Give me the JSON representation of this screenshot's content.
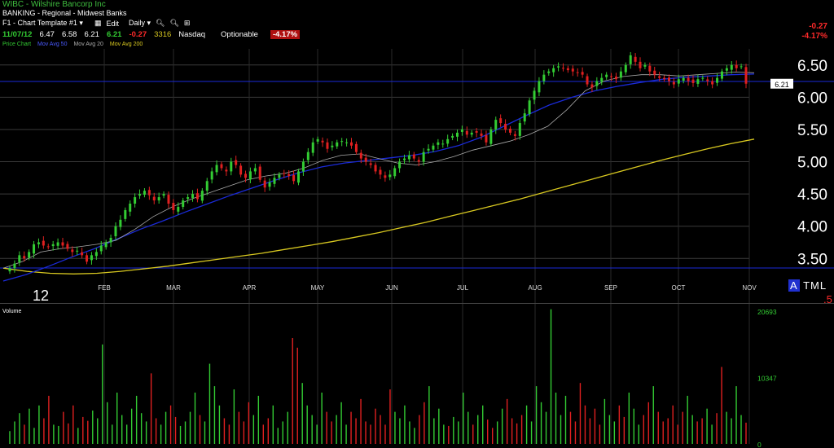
{
  "header": {
    "title": "WIBC - Wilshire Bancorp Inc",
    "industry": "BANKING - Regional - Midwest Banks",
    "toolbar": {
      "template": "F1 - Chart Template #1",
      "edit": "Edit",
      "period": "Daily"
    },
    "quote": {
      "date": "11/07/12",
      "open": "6.47",
      "high": "6.58",
      "low": "6.21",
      "close": "6.21",
      "change": "-0.27",
      "volume": "3316",
      "exchange": "Nasdaq",
      "optionable": "Optionable",
      "pct_change": "-4.17%"
    },
    "legend": {
      "price": "Price Chart",
      "ma50": "Mov Avg 50",
      "ma20": "Mov Avg 20",
      "ma200": "Mov Avg 200"
    },
    "right_change": "-0.27",
    "right_pct": "-4.17%"
  },
  "overlay": {
    "year": "12",
    "atml": "ATML",
    "atml_a": "A",
    "atml_rest": "TML",
    "five": ".5",
    "volume_label": "Volume"
  },
  "colors": {
    "up": "#33cc33",
    "down": "#e02020",
    "ma20": "#aaaaaa",
    "ma50": "#1a2ad8",
    "ma200": "#d8c820",
    "grid": "#3a3a3a",
    "hline": "#1a2ad8"
  },
  "chart_data": [
    {
      "type": "line",
      "title": "WIBC - Wilshire Bancorp Inc",
      "x_ticks": [
        "FEB",
        "MAR",
        "APR",
        "MAY",
        "JUN",
        "JUL",
        "AUG",
        "SEP",
        "OCT",
        "NOV"
      ],
      "y_ticks": [
        "6.50",
        "6.00",
        "5.50",
        "5.00",
        "4.50",
        "4.00",
        "3.50"
      ],
      "ylim": [
        3.15,
        6.75
      ],
      "last_price_label": "6.21",
      "series": [
        {
          "name": "Price",
          "values": [
            3.35,
            3.42,
            3.55,
            3.5,
            3.6,
            3.72,
            3.75,
            3.7,
            3.68,
            3.72,
            3.75,
            3.7,
            3.65,
            3.6,
            3.62,
            3.55,
            3.45,
            3.55,
            3.6,
            3.7,
            3.75,
            3.82,
            4.0,
            4.1,
            4.25,
            4.35,
            4.45,
            4.5,
            4.55,
            4.48,
            4.4,
            4.45,
            4.5,
            4.35,
            4.25,
            4.3,
            4.4,
            4.45,
            4.5,
            4.42,
            4.55,
            4.7,
            4.85,
            4.95,
            4.9,
            4.85,
            5.0,
            4.95,
            4.8,
            4.75,
            4.85,
            4.9,
            4.72,
            4.6,
            4.68,
            4.75,
            4.8,
            4.82,
            4.78,
            4.7,
            4.85,
            5.0,
            5.15,
            5.3,
            5.35,
            5.3,
            5.2,
            5.25,
            5.3,
            5.32,
            5.3,
            5.25,
            5.15,
            5.05,
            5.0,
            4.95,
            4.85,
            4.8,
            4.75,
            4.8,
            4.9,
            5.0,
            5.05,
            5.1,
            5.05,
            5.0,
            5.15,
            5.2,
            5.25,
            5.3,
            5.28,
            5.35,
            5.4,
            5.45,
            5.5,
            5.42,
            5.45,
            5.45,
            5.4,
            5.3,
            5.5,
            5.65,
            5.6,
            5.5,
            5.45,
            5.4,
            5.6,
            5.75,
            5.95,
            6.1,
            6.25,
            6.35,
            6.4,
            6.45,
            6.48,
            6.45,
            6.42,
            6.4,
            6.38,
            6.35,
            6.2,
            6.15,
            6.25,
            6.3,
            6.35,
            6.32,
            6.28,
            6.4,
            6.5,
            6.65,
            6.55,
            6.45,
            6.5,
            6.4,
            6.35,
            6.3,
            6.28,
            6.25,
            6.2,
            6.28,
            6.3,
            6.25,
            6.22,
            6.28,
            6.3,
            6.25,
            6.2,
            6.3,
            6.4,
            6.45,
            6.5,
            6.45,
            6.48,
            6.21
          ]
        },
        {
          "name": "Mov Avg 20",
          "values": [
            3.35,
            3.45,
            3.6,
            3.65,
            3.68,
            3.72,
            3.78,
            3.95,
            4.15,
            4.3,
            4.42,
            4.52,
            4.62,
            4.72,
            4.78,
            4.82,
            4.9,
            5.02,
            5.1,
            5.12,
            5.05,
            4.98,
            4.95,
            5.0,
            5.08,
            5.18,
            5.25,
            5.32,
            5.42,
            5.55,
            5.8,
            6.1,
            6.25,
            6.32,
            6.35,
            6.35,
            6.33,
            6.35,
            6.37,
            6.39,
            6.38
          ]
        },
        {
          "name": "Mov Avg 50",
          "values": [
            3.15,
            3.25,
            3.38,
            3.52,
            3.65,
            3.8,
            3.95,
            4.08,
            4.22,
            4.35,
            4.48,
            4.6,
            4.72,
            4.83,
            4.92,
            4.98,
            5.02,
            5.06,
            5.1,
            5.16,
            5.25,
            5.38,
            5.55,
            5.72,
            5.88,
            6.0,
            6.1,
            6.17,
            6.23,
            6.28,
            6.31,
            6.33,
            6.35,
            6.36
          ]
        },
        {
          "name": "Mov Avg 200",
          "values": [
            3.35,
            3.3,
            3.27,
            3.26,
            3.27,
            3.3,
            3.34,
            3.38,
            3.43,
            3.48,
            3.53,
            3.58,
            3.64,
            3.7,
            3.76,
            3.83,
            3.9,
            3.98,
            4.06,
            4.15,
            4.24,
            4.33,
            4.42,
            4.52,
            4.62,
            4.72,
            4.82,
            4.92,
            5.02,
            5.11,
            5.2,
            5.28,
            5.35
          ]
        }
      ]
    },
    {
      "type": "bar",
      "title": "Volume",
      "y_ticks": [
        "20693",
        "10347",
        "0"
      ],
      "ylim": [
        0,
        20693
      ],
      "series": [
        {
          "name": "Volume",
          "values": [
            2000,
            3500,
            4800,
            3000,
            5500,
            2500,
            6000,
            4000,
            7500,
            3000,
            2800,
            5000,
            3200,
            6000,
            2500,
            4200,
            3600,
            5200,
            4000,
            15500,
            6500,
            3000,
            8000,
            4500,
            3000,
            5500,
            7500,
            4800,
            3500,
            11000,
            4000,
            3000,
            5000,
            6000,
            4200,
            2800,
            3500,
            5000,
            8000,
            4500,
            3500,
            12500,
            9000,
            6000,
            4000,
            3000,
            8500,
            5000,
            3500,
            6500,
            4500,
            7500,
            3000,
            4000,
            6000,
            2500,
            3500,
            5000,
            16500,
            15000,
            9500,
            6000,
            4500,
            3000,
            8000,
            5000,
            3500,
            4500,
            6500,
            3000,
            5000,
            4000,
            7000,
            3500,
            3000,
            5500,
            4500,
            3000,
            8500,
            5000,
            4000,
            6000,
            3500,
            2500,
            4500,
            6500,
            9000,
            4000,
            5500,
            3000,
            2800,
            4200,
            3500,
            8000,
            5000,
            3000,
            4500,
            6000,
            3800,
            2500,
            3500,
            5500,
            7000,
            4000,
            3200,
            4500,
            6000,
            3500,
            9000,
            6500,
            5000,
            21000,
            8000,
            4500,
            7500,
            5000,
            3500,
            9500,
            6000,
            4000,
            5500,
            3000,
            7000,
            4500,
            3500,
            6000,
            4200,
            8000,
            5500,
            3000,
            4500,
            6500,
            9000,
            5000,
            3500,
            4000,
            6000,
            3000,
            5000,
            7500,
            4500,
            3500,
            4000,
            5500,
            3000,
            4800,
            12000,
            5000,
            4000,
            9000,
            4500,
            3316
          ]
        }
      ]
    }
  ]
}
